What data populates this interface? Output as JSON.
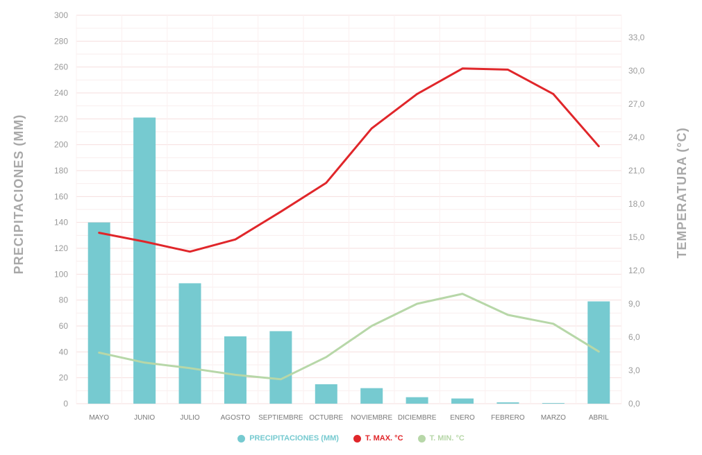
{
  "chart_data": {
    "type": "bar",
    "categories": [
      "MAYO",
      "JUNIO",
      "JULIO",
      "AGOSTO",
      "SEPTIEMBRE",
      "OCTUBRE",
      "NOVIEMBRE",
      "DICIEMBRE",
      "ENERO",
      "FEBRERO",
      "MARZO",
      "ABRIL"
    ],
    "series": [
      {
        "name": "PRECIPITACIONES (MM)",
        "type": "bar",
        "axis": "left",
        "color": "#76cad0",
        "values": [
          140,
          221,
          93,
          52,
          56,
          15,
          12,
          5,
          4,
          1,
          0.5,
          79
        ]
      },
      {
        "name": "T. MAX. °C",
        "type": "line",
        "axis": "right",
        "color": "#e0262a",
        "values": [
          15.4,
          14.6,
          13.7,
          14.8,
          17.3,
          19.9,
          24.8,
          27.9,
          30.2,
          30.1,
          27.9,
          23.2
        ]
      },
      {
        "name": "T. MIN. °C",
        "type": "line",
        "axis": "right",
        "color": "#b7d7a8",
        "values": [
          4.6,
          3.7,
          3.2,
          2.6,
          2.2,
          4.2,
          7.0,
          9.0,
          9.9,
          8.0,
          7.2,
          4.7
        ]
      }
    ],
    "ylabel": "PRECIPITACIONES (MM)",
    "y2label": "TEMPERATURA (°C)",
    "ylim": [
      0,
      300
    ],
    "y2lim": [
      0,
      35
    ],
    "yticks": [
      "0",
      "20",
      "40",
      "60",
      "80",
      "100",
      "120",
      "140",
      "160",
      "180",
      "200",
      "220",
      "240",
      "260",
      "280",
      "300"
    ],
    "y2ticks": [
      "0,0",
      "3,0",
      "6,0",
      "9,0",
      "12,0",
      "15,0",
      "18,0",
      "21,0",
      "24,0",
      "27,0",
      "30,0",
      "33,0"
    ],
    "grid": true,
    "legend": "bottom-center"
  }
}
